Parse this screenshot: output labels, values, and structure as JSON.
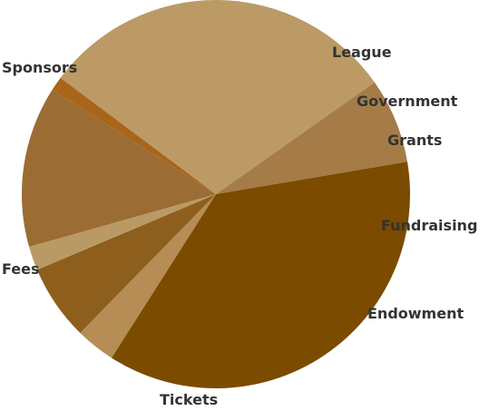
{
  "chart_data": {
    "type": "pie",
    "title": "",
    "start_angle_deg": 237.5,
    "direction": "clockwise",
    "slices": [
      {
        "label": "League",
        "value": 3.3,
        "color": "#B58D55"
      },
      {
        "label": "Government",
        "value": 6.3,
        "color": "#8E5E1C"
      },
      {
        "label": "Grants",
        "value": 2.0,
        "color": "#B99A64"
      },
      {
        "label": "Fundraising",
        "value": 13.4,
        "color": "#9B6C33"
      },
      {
        "label": "Endowment",
        "value": 1.2,
        "color": "#A9661A"
      },
      {
        "label": "Tickets",
        "value": 30.0,
        "color": "#BC9A66"
      },
      {
        "label": "Fees",
        "value": 7.1,
        "color": "#A57C48"
      },
      {
        "label": "Sponsors",
        "value": 36.7,
        "color": "#7B4B00"
      }
    ]
  }
}
